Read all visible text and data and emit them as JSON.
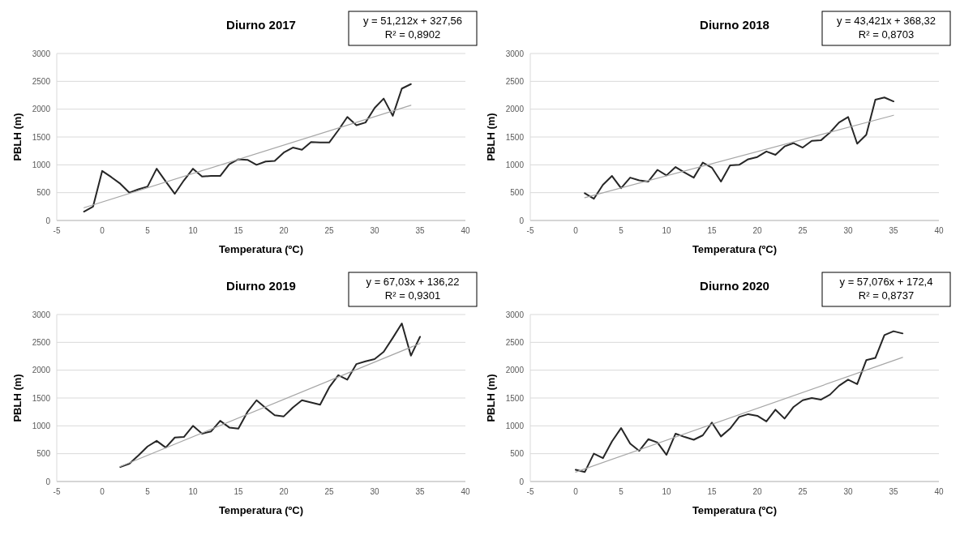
{
  "chart_data": [
    {
      "type": "line",
      "title": "Diurno 2017",
      "xlabel": "Temperatura (ºC)",
      "ylabel": "PBLH (m)",
      "xlim": [
        -5,
        40
      ],
      "xticks": [
        -5,
        0,
        5,
        10,
        15,
        20,
        25,
        30,
        35,
        40
      ],
      "ylim": [
        0,
        3000
      ],
      "yticks": [
        0,
        500,
        1000,
        1500,
        2000,
        2500,
        3000
      ],
      "grid": "y",
      "annotations": [
        "y = 51,212x + 327,56",
        "R² = 0,8902"
      ],
      "series": [
        {
          "color": "#262626",
          "x": [
            -2,
            -1,
            0,
            1,
            2,
            3,
            4,
            5,
            6,
            7,
            8,
            9,
            10,
            11,
            12,
            13,
            14,
            15,
            16,
            17,
            18,
            19,
            20,
            21,
            22,
            23,
            24,
            25,
            26,
            27,
            28,
            29,
            30,
            31,
            32,
            33,
            34
          ],
          "values": [
            160,
            250,
            890,
            780,
            660,
            500,
            560,
            610,
            930,
            700,
            480,
            720,
            930,
            790,
            800,
            800,
            1010,
            1100,
            1090,
            1000,
            1060,
            1070,
            1220,
            1310,
            1270,
            1410,
            1400,
            1400,
            1620,
            1860,
            1710,
            1760,
            2020,
            2190,
            1880,
            2370,
            2450
          ]
        },
        {
          "color": "#a6a6a6",
          "x": [
            -2,
            34
          ],
          "values": [
            230,
            2070
          ]
        }
      ]
    },
    {
      "type": "line",
      "title": "Diurno 2018",
      "xlabel": "Temperatura (ºC)",
      "ylabel": "PBLH (m)",
      "xlim": [
        -5,
        40
      ],
      "xticks": [
        -5,
        0,
        5,
        10,
        15,
        20,
        25,
        30,
        35,
        40
      ],
      "ylim": [
        0,
        3000
      ],
      "yticks": [
        0,
        500,
        1000,
        1500,
        2000,
        2500,
        3000
      ],
      "grid": "y",
      "annotations": [
        "y = 43,421x + 368,32",
        "R² = 0,8703"
      ],
      "series": [
        {
          "color": "#262626",
          "x": [
            1,
            2,
            3,
            4,
            5,
            6,
            7,
            8,
            9,
            10,
            11,
            12,
            13,
            14,
            15,
            16,
            17,
            18,
            19,
            20,
            21,
            22,
            23,
            24,
            25,
            26,
            27,
            28,
            29,
            30,
            31,
            32,
            33,
            34,
            35
          ],
          "values": [
            490,
            390,
            640,
            800,
            580,
            770,
            720,
            700,
            910,
            810,
            960,
            860,
            770,
            1040,
            950,
            700,
            990,
            1000,
            1100,
            1140,
            1240,
            1180,
            1330,
            1390,
            1310,
            1430,
            1440,
            1580,
            1760,
            1860,
            1380,
            1540,
            2170,
            2210,
            2140
          ]
        },
        {
          "color": "#a6a6a6",
          "x": [
            1,
            35
          ],
          "values": [
            410,
            1890
          ]
        }
      ]
    },
    {
      "type": "line",
      "title": "Diurno 2019",
      "xlabel": "Temperatura (ºC)",
      "ylabel": "PBLH (m)",
      "xlim": [
        -5,
        40
      ],
      "xticks": [
        -5,
        0,
        5,
        10,
        15,
        20,
        25,
        30,
        35,
        40
      ],
      "ylim": [
        0,
        3000
      ],
      "yticks": [
        0,
        500,
        1000,
        1500,
        2000,
        2500,
        3000
      ],
      "grid": "y",
      "annotations": [
        "y = 67,03x + 136,22",
        "R² = 0,9301"
      ],
      "series": [
        {
          "color": "#262626",
          "x": [
            2,
            3,
            4,
            5,
            6,
            7,
            8,
            9,
            10,
            11,
            12,
            13,
            14,
            15,
            16,
            17,
            18,
            19,
            20,
            21,
            22,
            23,
            24,
            25,
            26,
            27,
            28,
            29,
            30,
            31,
            32,
            33,
            34,
            35
          ],
          "values": [
            260,
            320,
            470,
            630,
            730,
            610,
            790,
            800,
            1000,
            860,
            900,
            1090,
            970,
            950,
            1250,
            1460,
            1320,
            1190,
            1170,
            1330,
            1460,
            1420,
            1380,
            1690,
            1910,
            1830,
            2110,
            2160,
            2200,
            2330,
            2580,
            2840,
            2260,
            2600
          ]
        },
        {
          "color": "#a6a6a6",
          "x": [
            2,
            35
          ],
          "values": [
            270,
            2480
          ]
        }
      ]
    },
    {
      "type": "line",
      "title": "Diurno 2020",
      "xlabel": "Temperatura (ºC)",
      "ylabel": "PBLH (m)",
      "xlim": [
        -5,
        40
      ],
      "xticks": [
        -5,
        0,
        5,
        10,
        15,
        20,
        25,
        30,
        35,
        40
      ],
      "ylim": [
        0,
        3000
      ],
      "yticks": [
        0,
        500,
        1000,
        1500,
        2000,
        2500,
        3000
      ],
      "grid": "y",
      "annotations": [
        "y = 57,076x + 172,4",
        "R² = 0,8737"
      ],
      "series": [
        {
          "color": "#262626",
          "x": [
            0,
            1,
            2,
            3,
            4,
            5,
            6,
            7,
            8,
            9,
            10,
            11,
            12,
            13,
            14,
            15,
            16,
            17,
            18,
            19,
            20,
            21,
            22,
            23,
            24,
            25,
            26,
            27,
            28,
            29,
            30,
            31,
            32,
            33,
            34,
            35,
            36
          ],
          "values": [
            210,
            170,
            500,
            420,
            720,
            960,
            680,
            550,
            760,
            700,
            480,
            860,
            800,
            750,
            830,
            1060,
            810,
            950,
            1160,
            1210,
            1180,
            1080,
            1290,
            1130,
            1340,
            1460,
            1500,
            1470,
            1560,
            1720,
            1830,
            1750,
            2180,
            2220,
            2630,
            2700,
            2660
          ]
        },
        {
          "color": "#a6a6a6",
          "x": [
            0,
            36
          ],
          "values": [
            170,
            2230
          ]
        }
      ]
    }
  ]
}
